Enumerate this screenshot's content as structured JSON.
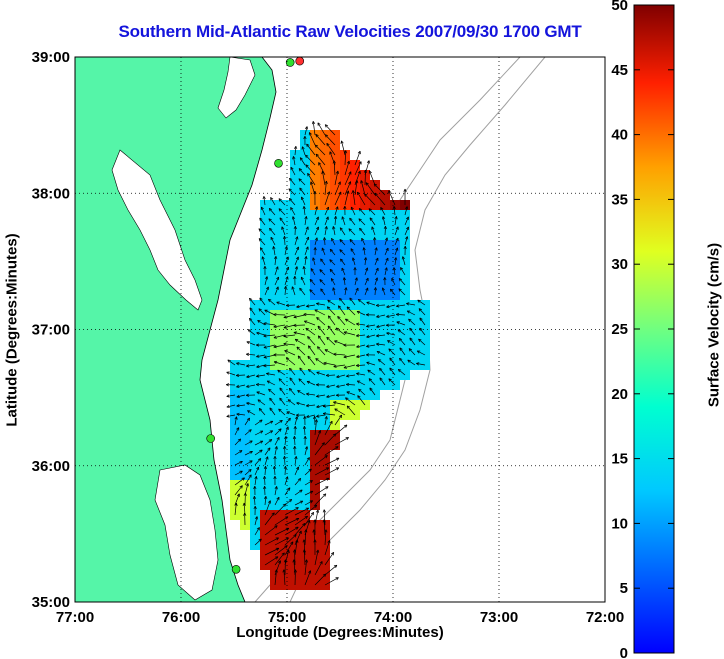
{
  "title": "Southern Mid-Atlantic Raw Velocities 2007/09/30 1700 GMT",
  "map": {
    "xlabel": "Longitude (Degrees:Minutes)",
    "ylabel": "Latitude (Degrees:Minutes)",
    "x_ticks": [
      "77:00",
      "76:00",
      "75:00",
      "74:00",
      "73:00",
      "72:00"
    ],
    "y_ticks": [
      "39:00",
      "38:00",
      "37:00",
      "36:00",
      "35:00"
    ],
    "lon_range": [
      -77,
      -72
    ],
    "lat_range": [
      35,
      39
    ],
    "grid": "dotted",
    "colors": {
      "land": "#55f5a8",
      "title": "#1414dc",
      "bathymetry": "#a0a0a0",
      "vectors": "#000000"
    }
  },
  "colorbar": {
    "label": "Surface Velocity (cm/s)",
    "ticks": [
      "0",
      "5",
      "10",
      "15",
      "20",
      "25",
      "30",
      "35",
      "40",
      "45",
      "50"
    ],
    "range": [
      0,
      50
    ],
    "colormap": "jet"
  },
  "stations": [
    {
      "lon": -74.88,
      "lat": 38.97,
      "color": "#ff3030"
    },
    {
      "lon": -74.97,
      "lat": 38.96,
      "color": "#30e030"
    },
    {
      "lon": -75.08,
      "lat": 38.22,
      "color": "#30e030"
    },
    {
      "lon": -75.72,
      "lat": 36.2,
      "color": "#30e030"
    },
    {
      "lon": -75.48,
      "lat": 35.24,
      "color": "#30e030"
    }
  ]
}
